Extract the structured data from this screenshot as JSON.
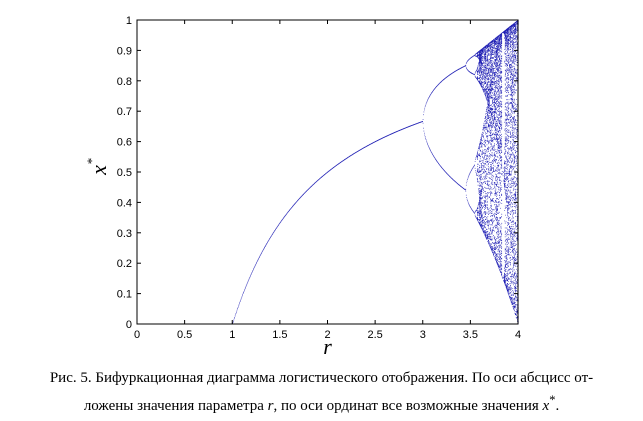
{
  "chart_data": {
    "type": "scatter",
    "xlabel": "r",
    "ylabel": "x",
    "ylabel_sup": "*",
    "xlim": [
      0,
      4
    ],
    "ylim": [
      0,
      1
    ],
    "xticks": [
      "0",
      "0.5",
      "1",
      "1.5",
      "2",
      "2.5",
      "3",
      "3.5",
      "4"
    ],
    "yticks": [
      "0",
      "0.1",
      "0.2",
      "0.3",
      "0.4",
      "0.5",
      "0.6",
      "0.7",
      "0.8",
      "0.9",
      "1"
    ],
    "grid": false,
    "series_color": "#1f1fb4",
    "series": [
      {
        "function": "logistic map x_{n+1} = r x_n (1 - x_n)",
        "r_range": [
          0,
          4
        ],
        "x_range": [
          0,
          1
        ]
      }
    ]
  },
  "caption": {
    "line1": "Рис. 5. Бифуркационная диаграмма логистического отображения. По оси абсцисс от-",
    "line2_a": "ложены значения параметра ",
    "line2_var_r": "r",
    "line2_b": ", по оси ординат все возможные значения ",
    "line2_var_x": "x",
    "line2_sup": "*",
    "line2_end": "."
  }
}
